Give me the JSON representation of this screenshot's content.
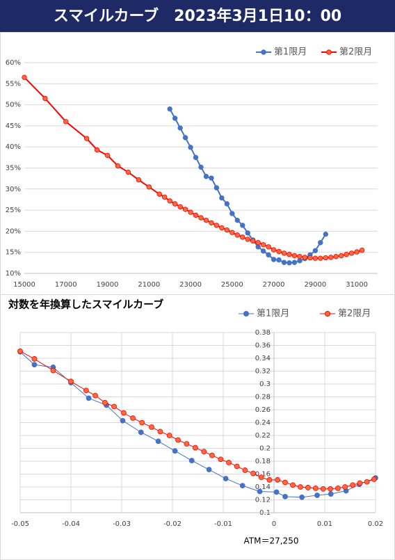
{
  "header": {
    "title": "スマイルカーブ　2023年3月1日10：00"
  },
  "chart_data": [
    {
      "type": "line",
      "legend": "upper right",
      "grid": "y",
      "xlim": [
        15000,
        32000
      ],
      "xticks": [
        15000,
        17000,
        19000,
        21000,
        23000,
        25000,
        27000,
        29000,
        31000
      ],
      "ylim": [
        10,
        60
      ],
      "yticks": [
        {
          "value": 10,
          "label": "10%"
        },
        {
          "value": 15,
          "label": "15%"
        },
        {
          "value": 20,
          "label": "20%"
        },
        {
          "value": 25,
          "label": "25%"
        },
        {
          "value": 30,
          "label": "30%"
        },
        {
          "value": 35,
          "label": "35%"
        },
        {
          "value": 40,
          "label": "40%"
        },
        {
          "value": 45,
          "label": "45%"
        },
        {
          "value": 50,
          "label": "50%"
        },
        {
          "value": 55,
          "label": "55%"
        },
        {
          "value": 60,
          "label": "60%"
        }
      ],
      "series": [
        {
          "name": "第1限月",
          "color": "#4472c4",
          "marker_fill": "#4472c4",
          "x": [
            22000,
            22250,
            22500,
            22750,
            23000,
            23250,
            23500,
            23750,
            24000,
            24250,
            24500,
            24750,
            25000,
            25250,
            25500,
            25750,
            26000,
            26250,
            26500,
            26750,
            27000,
            27250,
            27500,
            27750,
            28000,
            28250,
            28500,
            28750,
            29000,
            29250,
            29500
          ],
          "values": [
            49,
            46.8,
            44.5,
            42.2,
            39.9,
            37.5,
            35.2,
            33,
            32.6,
            30.3,
            27.9,
            26.5,
            24.2,
            22.6,
            21.4,
            19.6,
            17.9,
            16.3,
            15.3,
            14.4,
            13.3,
            13.2,
            12.6,
            12.5,
            12.6,
            13.0,
            13.5,
            14.4,
            15.4,
            17.3,
            19.3
          ]
        },
        {
          "name": "第2限月",
          "color": "#ff0000",
          "marker_fill": "#ff6a3d",
          "x": [
            15000,
            16000,
            17000,
            18000,
            18500,
            19000,
            19500,
            20000,
            20500,
            21000,
            21500,
            21750,
            22000,
            22250,
            22500,
            22750,
            23000,
            23250,
            23500,
            23750,
            24000,
            24250,
            24500,
            24750,
            25000,
            25250,
            25500,
            25750,
            26000,
            26250,
            26500,
            26750,
            27000,
            27250,
            27500,
            27750,
            28000,
            28250,
            28500,
            28750,
            29000,
            29250,
            29500,
            29750,
            30000,
            30250,
            30500,
            30750,
            31000,
            31250
          ],
          "values": [
            56.5,
            51.5,
            46,
            42,
            39.3,
            38,
            35.5,
            34,
            32.2,
            30.5,
            28.8,
            28.1,
            27.2,
            26.5,
            25.8,
            25.2,
            24.5,
            23.8,
            23.2,
            22.6,
            22.0,
            21.4,
            20.8,
            20.3,
            19.7,
            19.1,
            18.6,
            18.1,
            17.7,
            17.3,
            16.8,
            16.3,
            15.6,
            15.2,
            14.8,
            14.5,
            14.2,
            14.0,
            13.8,
            13.7,
            13.6,
            13.6,
            13.7,
            13.8,
            14.0,
            14.2,
            14.5,
            14.8,
            15.1,
            15.5
          ]
        }
      ]
    },
    {
      "type": "scatter",
      "title": "対数を年換算したスマイルカーブ",
      "legend": "upper right",
      "grid": "both",
      "y_axis_position": "zero",
      "annotations": [
        "ATM＝27,250"
      ],
      "xlim": [
        -0.05,
        0.02
      ],
      "xticks": [
        -0.05,
        -0.04,
        -0.03,
        -0.02,
        -0.01,
        0,
        0.01,
        0.02
      ],
      "ylim": [
        0.1,
        0.38
      ],
      "yticks": [
        0.1,
        0.12,
        0.14,
        0.16,
        0.18,
        0.2,
        0.22,
        0.24,
        0.26,
        0.28,
        0.3,
        0.32,
        0.34,
        0.36,
        0.38
      ],
      "series": [
        {
          "name": "第1限月",
          "color": "#4472c4",
          "marker_fill": "#4472c4",
          "x": [
            -0.05,
            -0.0472,
            -0.0435,
            -0.04,
            -0.0365,
            -0.033,
            -0.0298,
            -0.0262,
            -0.0228,
            -0.0195,
            -0.0162,
            -0.0128,
            -0.0095,
            -0.0062,
            -0.0028,
            0.0005,
            0.0022,
            0.0055,
            0.0085,
            0.0112,
            0.0142,
            0.0168,
            0.02
          ],
          "values": [
            0.35,
            0.33,
            0.326,
            0.302,
            0.278,
            0.267,
            0.243,
            0.225,
            0.211,
            0.196,
            0.181,
            0.167,
            0.153,
            0.142,
            0.133,
            0.132,
            0.125,
            0.124,
            0.127,
            0.129,
            0.134,
            0.144,
            0.154
          ]
        },
        {
          "name": "第2限月",
          "color": "#ff0000",
          "marker_fill": "#ff6a3d",
          "x": [
            -0.05,
            -0.0472,
            -0.0435,
            -0.04,
            -0.037,
            -0.0352,
            -0.0333,
            -0.0315,
            -0.0296,
            -0.0278,
            -0.026,
            -0.0241,
            -0.0224,
            -0.0206,
            -0.0189,
            -0.0172,
            -0.0155,
            -0.0138,
            -0.0122,
            -0.0105,
            -0.0089,
            -0.0073,
            -0.0057,
            -0.0041,
            -0.0025,
            -0.0009,
            0.0007,
            0.0022,
            0.0037,
            0.0052,
            0.0067,
            0.0082,
            0.0097,
            0.0111,
            0.0126,
            0.014,
            0.0155,
            0.0169,
            0.0183,
            0.0197
          ],
          "values": [
            0.351,
            0.339,
            0.321,
            0.304,
            0.29,
            0.282,
            0.271,
            0.265,
            0.255,
            0.247,
            0.24,
            0.233,
            0.226,
            0.22,
            0.213,
            0.207,
            0.201,
            0.195,
            0.189,
            0.183,
            0.178,
            0.172,
            0.166,
            0.161,
            0.155,
            0.151,
            0.151,
            0.147,
            0.143,
            0.14,
            0.139,
            0.138,
            0.137,
            0.137,
            0.138,
            0.14,
            0.143,
            0.146,
            0.148,
            0.152
          ]
        }
      ]
    }
  ]
}
